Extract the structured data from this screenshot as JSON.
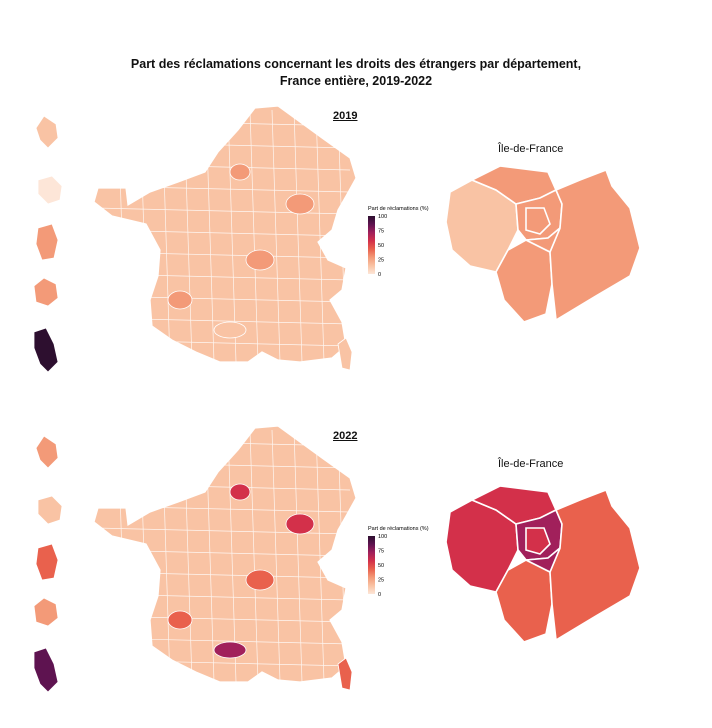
{
  "title": {
    "line1": "Part des réclamations concernant les droits des étrangers par département,",
    "line2": "France entière, 2019-2022"
  },
  "colors": {
    "scale": [
      "#fde6d8",
      "#f9c3a4",
      "#f39a78",
      "#e9614d",
      "#d3304a",
      "#a1205b",
      "#5e1350",
      "#2d0f2f"
    ],
    "border": "#ffffff"
  },
  "legend": {
    "title": "Part de réclamations (%)",
    "ticks": [
      "100",
      "75",
      "50",
      "25",
      "0"
    ]
  },
  "panels": [
    {
      "year": "2019",
      "idf_label": "Île-de-France",
      "levels": {
        "france_base": 0.12,
        "overseas": [
          0.15,
          0.05,
          0.28,
          0.25,
          0.97
        ],
        "corsica": 0.2,
        "hotspots": [
          0.25,
          0.3,
          0.22,
          0.28,
          0.2
        ],
        "idf": [
          0.12,
          0.25,
          0.3,
          0.28,
          0.35,
          0.25,
          0.3
        ]
      }
    },
    {
      "year": "2022",
      "idf_label": "Île-de-France",
      "levels": {
        "france_base": 0.2,
        "overseas": [
          0.25,
          0.1,
          0.4,
          0.3,
          0.85
        ],
        "corsica": 0.38,
        "hotspots": [
          0.6,
          0.55,
          0.45,
          0.4,
          0.65
        ],
        "idf": [
          0.55,
          0.5,
          0.42,
          0.75,
          0.6,
          0.4,
          0.75
        ]
      }
    }
  ]
}
